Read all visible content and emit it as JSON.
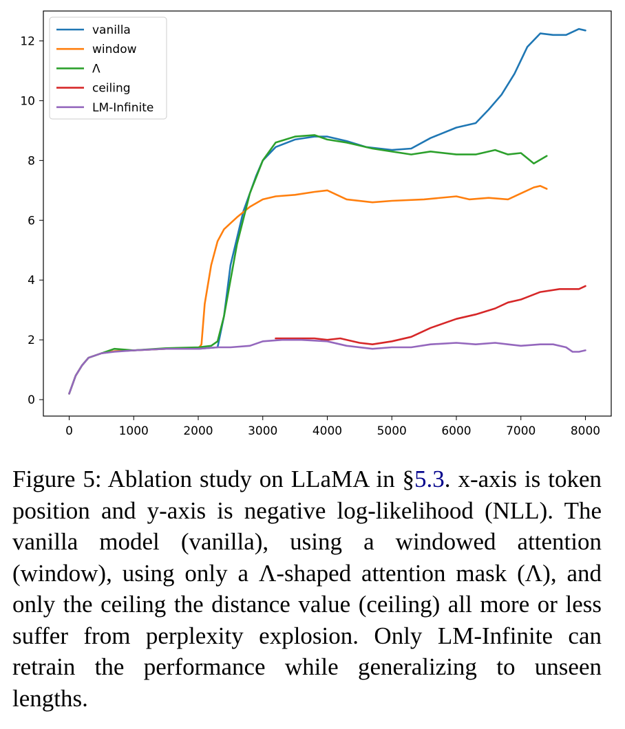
{
  "chart_data": {
    "type": "line",
    "title": "",
    "xlabel": "",
    "ylabel": "",
    "xlim": [
      -400,
      8400
    ],
    "ylim": [
      -0.55,
      13.0
    ],
    "xticks": [
      0,
      1000,
      2000,
      3000,
      4000,
      5000,
      6000,
      7000,
      8000
    ],
    "xtick_labels": [
      "0",
      "1000",
      "2000",
      "3000",
      "4000",
      "5000",
      "6000",
      "7000",
      "8000"
    ],
    "yticks": [
      0,
      2,
      4,
      6,
      8,
      10,
      12
    ],
    "ytick_labels": [
      "0",
      "2",
      "4",
      "6",
      "8",
      "10",
      "12"
    ],
    "grid": false,
    "legend_position": "top-left",
    "series": [
      {
        "name": "vanilla",
        "color": "#1f77b4",
        "x": [
          0,
          100,
          200,
          300,
          500,
          700,
          1000,
          1500,
          2000,
          2300,
          2400,
          2500,
          2700,
          2900,
          3000,
          3200,
          3500,
          3800,
          4000,
          4300,
          4600,
          5000,
          5300,
          5600,
          6000,
          6300,
          6500,
          6700,
          6900,
          7100,
          7300,
          7500,
          7700,
          7900,
          8000
        ],
        "y": [
          0.2,
          0.8,
          1.15,
          1.4,
          1.55,
          1.62,
          1.65,
          1.7,
          1.7,
          1.75,
          2.8,
          4.5,
          6.3,
          7.5,
          8.0,
          8.45,
          8.7,
          8.8,
          8.8,
          8.65,
          8.45,
          8.35,
          8.4,
          8.75,
          9.1,
          9.25,
          9.7,
          10.2,
          10.9,
          11.8,
          12.25,
          12.2,
          12.2,
          12.4,
          12.35
        ]
      },
      {
        "name": "window",
        "color": "#ff7f0e",
        "x": [
          0,
          100,
          200,
          300,
          500,
          700,
          1000,
          1500,
          2000,
          2050,
          2100,
          2200,
          2300,
          2400,
          2500,
          2600,
          2800,
          3000,
          3200,
          3500,
          3800,
          4000,
          4300,
          4700,
          5000,
          5500,
          6000,
          6200,
          6500,
          6800,
          7000,
          7200,
          7300,
          7400
        ],
        "y": [
          0.2,
          0.8,
          1.15,
          1.4,
          1.55,
          1.62,
          1.65,
          1.7,
          1.7,
          1.85,
          3.2,
          4.5,
          5.3,
          5.7,
          5.9,
          6.1,
          6.45,
          6.7,
          6.8,
          6.85,
          6.95,
          7.0,
          6.7,
          6.6,
          6.65,
          6.7,
          6.8,
          6.7,
          6.75,
          6.7,
          6.9,
          7.1,
          7.15,
          7.05
        ]
      },
      {
        "name": "Λ",
        "color": "#2ca02c",
        "x": [
          0,
          100,
          200,
          300,
          500,
          700,
          1000,
          1500,
          2000,
          2200,
          2300,
          2400,
          2500,
          2600,
          2800,
          3000,
          3200,
          3500,
          3800,
          4000,
          4300,
          4700,
          5000,
          5300,
          5600,
          6000,
          6300,
          6600,
          6800,
          7000,
          7200,
          7400
        ],
        "y": [
          0.2,
          0.8,
          1.15,
          1.4,
          1.55,
          1.7,
          1.65,
          1.72,
          1.75,
          1.8,
          1.95,
          2.8,
          4.0,
          5.2,
          6.9,
          8.0,
          8.6,
          8.8,
          8.85,
          8.7,
          8.6,
          8.4,
          8.3,
          8.2,
          8.3,
          8.2,
          8.2,
          8.35,
          8.2,
          8.25,
          7.9,
          8.15
        ]
      },
      {
        "name": "ceiling",
        "color": "#d62728",
        "x": [
          3200,
          3500,
          3800,
          4000,
          4200,
          4500,
          4700,
          5000,
          5300,
          5600,
          6000,
          6300,
          6600,
          6800,
          7000,
          7300,
          7600,
          7900,
          8000
        ],
        "y": [
          2.05,
          2.05,
          2.05,
          2.0,
          2.05,
          1.9,
          1.85,
          1.95,
          2.1,
          2.4,
          2.7,
          2.85,
          3.05,
          3.25,
          3.35,
          3.6,
          3.7,
          3.7,
          3.8
        ]
      },
      {
        "name": "LM-Infinite",
        "color": "#9467bd",
        "x": [
          0,
          100,
          200,
          300,
          500,
          700,
          1000,
          1500,
          2000,
          2300,
          2500,
          2800,
          3000,
          3300,
          3600,
          4000,
          4300,
          4700,
          5000,
          5300,
          5600,
          6000,
          6300,
          6600,
          6800,
          7000,
          7300,
          7500,
          7700,
          7800,
          7900,
          8000
        ],
        "y": [
          0.2,
          0.8,
          1.15,
          1.4,
          1.55,
          1.6,
          1.65,
          1.7,
          1.7,
          1.75,
          1.75,
          1.8,
          1.95,
          2.0,
          2.0,
          1.95,
          1.8,
          1.7,
          1.75,
          1.75,
          1.85,
          1.9,
          1.85,
          1.9,
          1.85,
          1.8,
          1.85,
          1.85,
          1.75,
          1.6,
          1.6,
          1.65
        ]
      }
    ]
  },
  "caption": {
    "before_ref": "Figure 5: Ablation study on LLaMA in §",
    "ref": "5.3",
    "after_ref": ". x-axis is token position and y-axis is negative log-likelihood (NLL). The vanilla model (vanilla), using a windowed attention (window), using only a Λ-shaped attention mask (Λ), and only the ceiling the distance value (ceiling) all more or less suffer from perplexity explosion. Only LM-Infinite can retrain the performance while generalizing to unseen lengths."
  }
}
